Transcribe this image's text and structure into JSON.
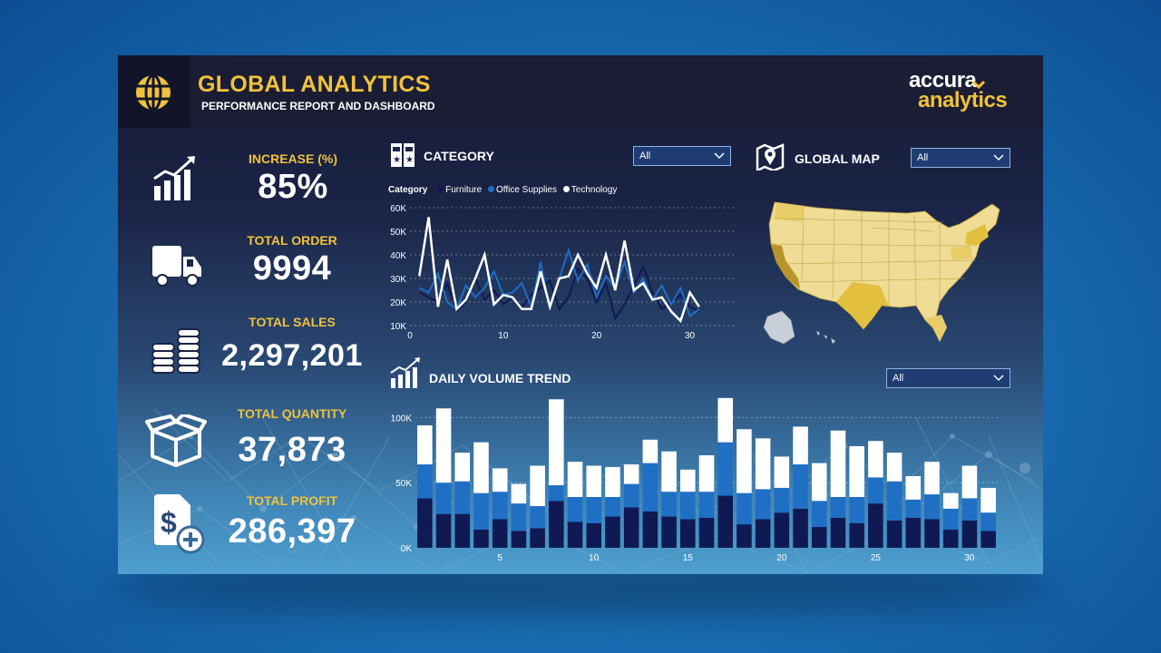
{
  "header": {
    "title": "GLOBAL ANALYTICS",
    "subtitle": "PERFORMANCE REPORT AND DASHBOARD",
    "logo_top": "accura",
    "logo_bottom": "analytics"
  },
  "kpis": [
    {
      "label": "INCREASE (%)",
      "value": "85%",
      "icon": "bar-chart-growth-icon"
    },
    {
      "label": "TOTAL ORDER",
      "value": "9994",
      "icon": "truck-icon"
    },
    {
      "label": "TOTAL SALES",
      "value": "2,297,201",
      "icon": "coin-stack-icon"
    },
    {
      "label": "TOTAL QUANTITY",
      "value": "37,873",
      "icon": "box-icon"
    },
    {
      "label": "TOTAL PROFIT",
      "value": "286,397",
      "icon": "dollar-document-icon"
    }
  ],
  "category": {
    "title": "CATEGORY",
    "filter_value": "All",
    "legend_title": "Category",
    "legend": [
      "Furniture",
      "Office Supplies",
      "Technology"
    ]
  },
  "global_map": {
    "title": "GLOBAL MAP",
    "filter_value": "All"
  },
  "daily_volume": {
    "title": "DAILY VOLUME TREND",
    "filter_value": "All"
  },
  "colors": {
    "accent": "#f0c23c",
    "furniture": "#0f1a55",
    "office_supplies": "#1f6fc5",
    "technology": "#ffffff"
  },
  "chart_data": [
    {
      "type": "line",
      "x": [
        1,
        2,
        3,
        4,
        5,
        6,
        7,
        8,
        9,
        10,
        11,
        12,
        13,
        14,
        15,
        16,
        17,
        18,
        19,
        20,
        21,
        22,
        23,
        24,
        25,
        26,
        27,
        28,
        29,
        30,
        31
      ],
      "xticks": [
        "0",
        "10",
        "20",
        "30"
      ],
      "yticks": [
        "10K",
        "20K",
        "30K",
        "40K",
        "50K",
        "60K"
      ],
      "xlim": [
        0,
        35
      ],
      "ylim": [
        10000,
        60000
      ],
      "series": [
        {
          "name": "Furniture",
          "values": [
            24000,
            22000,
            20000,
            28000,
            16000,
            20000,
            30000,
            21000,
            25000,
            19000,
            22000,
            18000,
            23000,
            26000,
            29000,
            17000,
            22000,
            34000,
            30000,
            20000,
            28000,
            13000,
            19000,
            27000,
            35000,
            24000,
            17000,
            20000,
            23000,
            18000,
            16000
          ]
        },
        {
          "name": "Office Supplies",
          "values": [
            26000,
            24000,
            32000,
            20000,
            17000,
            27000,
            22000,
            26000,
            33000,
            23000,
            24000,
            28000,
            18000,
            37000,
            17000,
            30000,
            42000,
            29000,
            36000,
            22000,
            31000,
            26000,
            37000,
            24000,
            30000,
            21000,
            27000,
            19000,
            26000,
            14000,
            17000
          ]
        },
        {
          "name": "Technology",
          "values": [
            31000,
            56000,
            18000,
            38000,
            17000,
            21000,
            30000,
            40000,
            19000,
            23000,
            22000,
            17000,
            17000,
            33000,
            18000,
            30000,
            31000,
            40000,
            32000,
            26000,
            40000,
            25000,
            46000,
            25000,
            28000,
            21000,
            22000,
            16000,
            12000,
            24000,
            18000
          ]
        }
      ]
    },
    {
      "type": "bar",
      "stacked": true,
      "x": [
        1,
        2,
        3,
        4,
        5,
        6,
        7,
        8,
        9,
        10,
        11,
        12,
        13,
        14,
        15,
        16,
        17,
        18,
        19,
        20,
        21,
        22,
        23,
        24,
        25,
        26,
        27,
        28,
        29,
        30,
        31
      ],
      "xticks": [
        "5",
        "10",
        "15",
        "20",
        "25",
        "30"
      ],
      "yticks": [
        "0K",
        "50K",
        "100K"
      ],
      "ylim": [
        0,
        110000
      ],
      "series": [
        {
          "name": "Furniture",
          "values": [
            38000,
            26000,
            26000,
            14000,
            22000,
            13000,
            15000,
            36000,
            20000,
            19000,
            24000,
            31000,
            28000,
            24000,
            22000,
            23000,
            40000,
            18000,
            22000,
            27000,
            30000,
            16000,
            23000,
            19000,
            34000,
            21000,
            23000,
            22000,
            14000,
            21000,
            13000
          ]
        },
        {
          "name": "Office Supplies",
          "values": [
            26000,
            24000,
            25000,
            28000,
            21000,
            21000,
            17000,
            12000,
            19000,
            20000,
            15000,
            18000,
            37000,
            19000,
            21000,
            20000,
            41000,
            24000,
            23000,
            19000,
            34000,
            20000,
            16000,
            20000,
            20000,
            30000,
            14000,
            19000,
            16000,
            17000,
            14000
          ]
        },
        {
          "name": "Technology",
          "values": [
            30000,
            57000,
            22000,
            39000,
            18000,
            15000,
            31000,
            66000,
            27000,
            24000,
            23000,
            15000,
            18000,
            31000,
            17000,
            28000,
            34000,
            49000,
            39000,
            24000,
            29000,
            29000,
            51000,
            39000,
            28000,
            22000,
            18000,
            25000,
            12000,
            25000,
            19000
          ]
        }
      ]
    }
  ]
}
